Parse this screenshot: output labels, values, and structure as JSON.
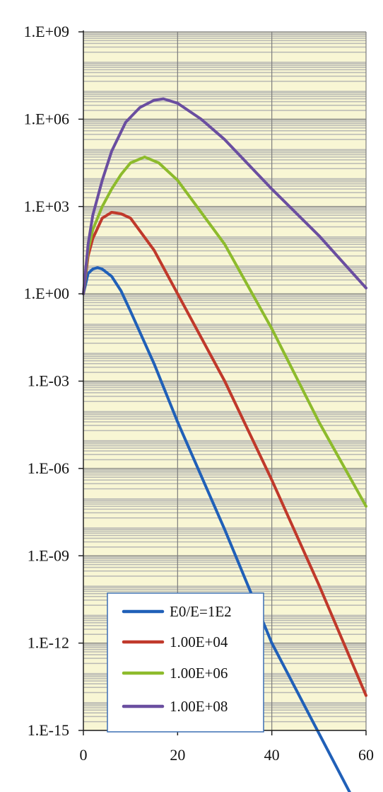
{
  "chart_data": {
    "type": "line",
    "title": "",
    "xlabel": "",
    "ylabel": "",
    "xlim": [
      0,
      60
    ],
    "ylim_log10": [
      -15,
      9
    ],
    "y_scale": "log",
    "x_ticks": [
      0,
      20,
      40,
      60
    ],
    "x_tick_labels": [
      "0",
      "20",
      "40",
      "60"
    ],
    "y_ticks_log10": [
      9,
      6,
      3,
      0,
      -3,
      -6,
      -9,
      -12,
      -15
    ],
    "y_tick_labels": [
      "1.E+09",
      "1.E+06",
      "1.E+03",
      "1.E+00",
      "1.E-03",
      "1.E-06",
      "1.E-09",
      "1.E-12",
      "1.E-15"
    ],
    "grid": true,
    "plot_background": "#f8f6d4",
    "legend_position": "bottom-center",
    "series": [
      {
        "name": "E0/E=1E2",
        "color": "#2060b8",
        "x": [
          0,
          1,
          2,
          3,
          4,
          6,
          8,
          10,
          15,
          20,
          30,
          40,
          50,
          60
        ],
        "y_log10": [
          0,
          0.7,
          0.85,
          0.9,
          0.85,
          0.6,
          0.1,
          -0.6,
          -2.4,
          -4.4,
          -8.1,
          -12,
          -15.1,
          -18.2
        ]
      },
      {
        "name": "1.00E+04",
        "color": "#c0392b",
        "x": [
          0,
          1,
          2,
          4,
          6,
          8,
          10,
          15,
          20,
          30,
          40,
          50,
          60
        ],
        "y_log10": [
          0,
          1.3,
          1.9,
          2.6,
          2.8,
          2.75,
          2.6,
          1.5,
          0,
          -3,
          -6.4,
          -10,
          -13.8
        ]
      },
      {
        "name": "1.00E+06",
        "color": "#8dbb2c",
        "x": [
          0,
          1,
          2,
          4,
          6,
          8,
          10,
          13,
          16,
          20,
          30,
          40,
          50,
          60
        ],
        "y_log10": [
          0,
          1.5,
          2.2,
          3.0,
          3.6,
          4.1,
          4.5,
          4.7,
          4.5,
          3.9,
          1.7,
          -1.2,
          -4.4,
          -7.3
        ]
      },
      {
        "name": "1.00E+08",
        "color": "#6a4ea0",
        "x": [
          0,
          1,
          2,
          4,
          6,
          9,
          12,
          15,
          17,
          20,
          25,
          30,
          40,
          50,
          60
        ],
        "y_log10": [
          0,
          1.7,
          2.7,
          3.9,
          4.9,
          5.9,
          6.4,
          6.65,
          6.7,
          6.55,
          6.0,
          5.3,
          3.6,
          2.0,
          0.2
        ]
      }
    ]
  }
}
